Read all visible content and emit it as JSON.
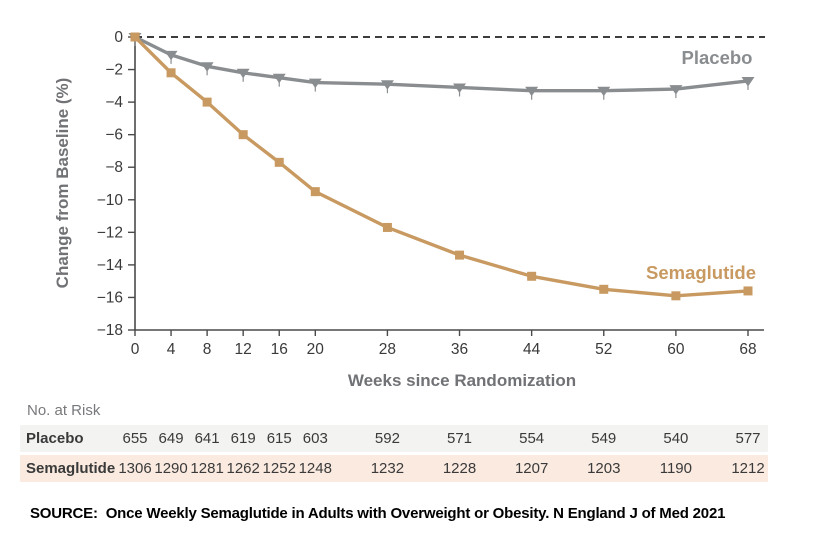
{
  "chart_data": {
    "type": "line",
    "title": "",
    "xlabel": "Weeks since Randomization",
    "ylabel": "Change from Baseline (%)",
    "x": [
      0,
      4,
      8,
      12,
      16,
      20,
      28,
      36,
      44,
      52,
      60,
      68
    ],
    "xlim": [
      0,
      68
    ],
    "ylim": [
      -18,
      0
    ],
    "yticks": [
      0,
      -2,
      -4,
      -6,
      -8,
      -10,
      -12,
      -14,
      -16,
      -18
    ],
    "grid": false,
    "zero_reference_line": "dashed",
    "legend_position": "inline-end-labels",
    "series": [
      {
        "name": "Placebo",
        "color": "#8A8D90",
        "marker": "triangle-down",
        "values": [
          0,
          -1.1,
          -1.8,
          -2.2,
          -2.5,
          -2.8,
          -2.9,
          -3.1,
          -3.3,
          -3.3,
          -3.2,
          -2.7
        ]
      },
      {
        "name": "Semaglutide",
        "color": "#C89A61",
        "marker": "square",
        "values": [
          0,
          -2.2,
          -4.0,
          -6.0,
          -7.7,
          -9.5,
          -11.7,
          -13.4,
          -14.7,
          -15.5,
          -15.9,
          -15.6
        ]
      }
    ]
  },
  "risk_table": {
    "header": "No. at Risk",
    "weeks": [
      0,
      4,
      8,
      12,
      16,
      20,
      28,
      36,
      44,
      52,
      60,
      68
    ],
    "rows": [
      {
        "label": "Placebo",
        "bg": "#F3F3F1",
        "values": [
          655,
          649,
          641,
          619,
          615,
          603,
          592,
          571,
          554,
          549,
          540,
          577
        ]
      },
      {
        "label": "Semaglutide",
        "bg": "#FAEAE0",
        "values": [
          1306,
          1290,
          1281,
          1262,
          1252,
          1248,
          1232,
          1228,
          1207,
          1203,
          1190,
          1212
        ]
      }
    ]
  },
  "source_note": "SOURCE:  Once Weekly Semaglutide in Adults with Overweight or Obesity. N England J of Med 2021",
  "colors": {
    "placebo": "#8A8D90",
    "semaglutide": "#C89A61",
    "axis_line": "#4a4a4a",
    "axis_text": "#3A3A3A",
    "muted_label": "#707275",
    "zero_line": "#222222",
    "placebo_row_bg": "#F3F3F1",
    "semaglutide_row_bg": "#FAEAE0"
  }
}
